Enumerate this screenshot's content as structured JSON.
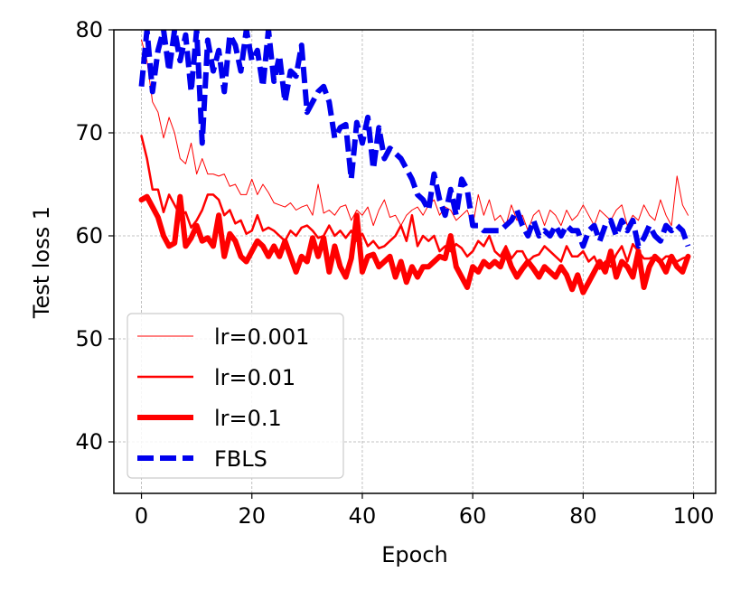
{
  "chart_data": {
    "type": "line",
    "xlabel": "Epoch",
    "ylabel": "Test loss 1",
    "xlim": [
      -5,
      104
    ],
    "ylim": [
      35,
      80
    ],
    "xticks": [
      0,
      20,
      40,
      60,
      80,
      100
    ],
    "yticks": [
      40,
      50,
      60,
      70,
      80
    ],
    "x_tick_labels": [
      "0",
      "20",
      "40",
      "60",
      "80",
      "100"
    ],
    "y_tick_labels": [
      "40",
      "50",
      "60",
      "70",
      "80"
    ],
    "grid": true,
    "legend_position": "lower-left",
    "x": [
      0,
      1,
      2,
      3,
      4,
      5,
      6,
      7,
      8,
      9,
      10,
      11,
      12,
      13,
      14,
      15,
      16,
      17,
      18,
      19,
      20,
      21,
      22,
      23,
      24,
      25,
      26,
      27,
      28,
      29,
      30,
      31,
      32,
      33,
      34,
      35,
      36,
      37,
      38,
      39,
      40,
      41,
      42,
      43,
      44,
      45,
      46,
      47,
      48,
      49,
      50,
      51,
      52,
      53,
      54,
      55,
      56,
      57,
      58,
      59,
      60,
      61,
      62,
      63,
      64,
      65,
      66,
      67,
      68,
      69,
      70,
      71,
      72,
      73,
      74,
      75,
      76,
      77,
      78,
      79,
      80,
      81,
      82,
      83,
      84,
      85,
      86,
      87,
      88,
      89,
      90,
      91,
      92,
      93,
      94,
      95,
      96,
      97,
      98,
      99
    ],
    "series": [
      {
        "name": "lr=0.001",
        "color": "#ff0000",
        "style": "solid",
        "line_width": 1,
        "values": [
          79.0,
          77.0,
          73.0,
          72.0,
          69.5,
          71.5,
          70.0,
          67.5,
          67.0,
          69.0,
          66.0,
          67.5,
          66.0,
          66.0,
          65.8,
          66.0,
          64.8,
          65.0,
          64.0,
          64.0,
          65.5,
          64.0,
          65.0,
          64.2,
          63.2,
          63.0,
          62.8,
          63.2,
          62.5,
          62.8,
          63.0,
          62.0,
          65.0,
          62.2,
          62.5,
          62.0,
          62.8,
          63.0,
          61.5,
          62.5,
          62.0,
          62.8,
          61.0,
          62.5,
          63.5,
          61.8,
          62.0,
          61.0,
          62.0,
          62.5,
          62.8,
          62.0,
          63.0,
          63.5,
          62.0,
          62.8,
          62.5,
          61.5,
          62.0,
          62.5,
          61.0,
          64.0,
          62.0,
          63.5,
          61.5,
          62.0,
          61.0,
          63.0,
          61.5,
          62.0,
          60.5,
          62.0,
          62.5,
          61.0,
          62.5,
          62.0,
          61.0,
          62.5,
          61.5,
          62.0,
          63.0,
          62.0,
          61.0,
          62.5,
          62.0,
          61.5,
          62.5,
          63.0,
          61.0,
          62.0,
          61.5,
          63.0,
          62.0,
          61.5,
          63.5,
          62.0,
          61.0,
          65.8,
          63.0,
          62.0
        ]
      },
      {
        "name": "lr=0.01",
        "color": "#ff0000",
        "style": "solid",
        "line_width": 2.5,
        "values": [
          69.7,
          67.5,
          64.5,
          64.5,
          62.3,
          64.0,
          63.0,
          62.0,
          62.3,
          60.8,
          61.5,
          62.5,
          64.0,
          64.0,
          63.5,
          62.0,
          62.5,
          61.2,
          61.5,
          60.2,
          60.5,
          62.0,
          60.5,
          60.8,
          60.5,
          60.0,
          59.5,
          60.5,
          60.0,
          60.8,
          61.0,
          60.5,
          59.8,
          60.0,
          61.0,
          60.0,
          60.5,
          59.8,
          60.5,
          59.5,
          60.2,
          59.0,
          59.5,
          58.8,
          59.0,
          59.5,
          60.0,
          61.0,
          59.5,
          62.0,
          59.0,
          60.0,
          59.5,
          60.0,
          58.5,
          59.0,
          58.5,
          59.2,
          58.8,
          58.0,
          58.5,
          59.5,
          59.0,
          60.0,
          58.5,
          58.0,
          59.0,
          57.8,
          58.5,
          58.5,
          57.5,
          58.0,
          58.2,
          59.0,
          58.5,
          58.0,
          57.5,
          59.0,
          58.0,
          58.0,
          58.5,
          57.5,
          58.0,
          56.8,
          57.5,
          57.0,
          58.2,
          59.0,
          57.5,
          59.2,
          58.5,
          57.8,
          57.8,
          58.0,
          57.5,
          58.0,
          58.0,
          57.5,
          57.8,
          58.0
        ]
      },
      {
        "name": "lr=0.1",
        "color": "#ff0000",
        "style": "solid",
        "line_width": 6,
        "values": [
          63.5,
          63.8,
          62.8,
          61.8,
          60.0,
          59.0,
          59.3,
          63.8,
          59.0,
          59.8,
          61.0,
          59.5,
          59.8,
          59.0,
          62.0,
          58.0,
          60.2,
          59.5,
          58.0,
          57.5,
          58.5,
          59.5,
          59.0,
          58.0,
          59.0,
          58.0,
          59.5,
          58.0,
          56.5,
          58.0,
          57.5,
          59.8,
          58.0,
          59.8,
          56.5,
          59.0,
          57.0,
          56.0,
          57.8,
          62.0,
          56.5,
          58.0,
          58.2,
          57.0,
          57.5,
          58.0,
          56.0,
          57.5,
          55.5,
          57.0,
          56.0,
          57.0,
          57.0,
          57.5,
          58.0,
          57.8,
          60.0,
          57.0,
          56.0,
          55.0,
          57.0,
          56.5,
          57.5,
          57.0,
          57.5,
          57.0,
          58.5,
          57.0,
          56.0,
          56.8,
          57.5,
          56.8,
          56.0,
          57.0,
          56.5,
          56.0,
          57.0,
          56.2,
          54.8,
          56.2,
          54.5,
          55.5,
          56.5,
          57.5,
          56.5,
          58.5,
          56.0,
          57.5,
          57.0,
          56.0,
          58.5,
          55.0,
          57.0,
          58.0,
          57.5,
          56.5,
          58.0,
          57.0,
          56.5,
          58.0
        ]
      },
      {
        "name": "FBLS",
        "color": "#0000ee",
        "style": "dashed",
        "line_width": 6,
        "values": [
          74.5,
          80.0,
          74.0,
          78.0,
          80.0,
          76.0,
          80.0,
          77.0,
          79.5,
          74.0,
          80.0,
          69.0,
          79.0,
          76.0,
          78.0,
          74.0,
          79.5,
          78.5,
          76.0,
          80.0,
          77.0,
          78.0,
          74.5,
          80.0,
          75.0,
          77.5,
          73.0,
          76.0,
          75.5,
          78.5,
          72.0,
          73.0,
          74.0,
          74.5,
          73.0,
          69.5,
          70.5,
          70.8,
          65.5,
          71.0,
          69.0,
          71.5,
          66.5,
          70.5,
          67.5,
          68.5,
          68.0,
          67.5,
          66.5,
          65.5,
          64.0,
          63.5,
          62.5,
          66.0,
          63.5,
          62.0,
          64.5,
          62.0,
          65.5,
          64.5,
          61.0,
          61.0,
          60.5,
          60.5,
          60.5,
          60.5,
          61.0,
          61.5,
          62.5,
          61.0,
          60.0,
          61.5,
          60.0,
          60.5,
          60.0,
          61.0,
          60.0,
          61.0,
          60.5,
          60.5,
          59.0,
          60.5,
          61.0,
          59.5,
          61.0,
          61.5,
          60.0,
          61.5,
          60.5,
          61.5,
          59.0,
          59.8,
          61.0,
          60.0,
          59.5,
          61.0,
          60.5,
          61.0,
          60.5,
          59.0
        ]
      }
    ]
  }
}
